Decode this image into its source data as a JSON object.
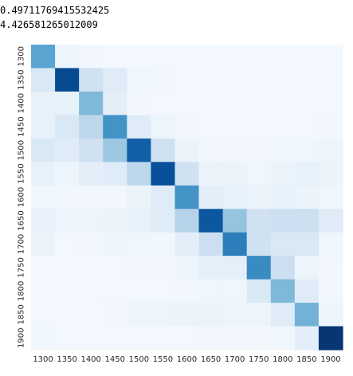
{
  "output": {
    "line1": "0.49711769415532425",
    "line2": "4.426581265012009"
  },
  "chart_data": {
    "type": "heatmap",
    "title": "",
    "xlabel": "",
    "ylabel": "",
    "x_ticks": [
      "1300",
      "1350",
      "1400",
      "1450",
      "1500",
      "1550",
      "1600",
      "1650",
      "1700",
      "1750",
      "1800",
      "1850",
      "1900"
    ],
    "y_ticks": [
      "1300",
      "1350",
      "1400",
      "1450",
      "1500",
      "1550",
      "1600",
      "1650",
      "1700",
      "1750",
      "1800",
      "1850",
      "1900"
    ],
    "colormap": "Blues",
    "color_range": [
      0,
      1
    ],
    "values": [
      [
        0.55,
        0.05,
        0.03,
        0.02,
        0.02,
        0.02,
        0.02,
        0.02,
        0.02,
        0.02,
        0.02,
        0.02,
        0.02
      ],
      [
        0.15,
        0.9,
        0.2,
        0.12,
        0.04,
        0.03,
        0.02,
        0.02,
        0.02,
        0.02,
        0.02,
        0.02,
        0.02
      ],
      [
        0.08,
        0.08,
        0.45,
        0.1,
        0.03,
        0.02,
        0.02,
        0.02,
        0.02,
        0.02,
        0.02,
        0.02,
        0.02
      ],
      [
        0.08,
        0.15,
        0.28,
        0.62,
        0.12,
        0.05,
        0.03,
        0.02,
        0.02,
        0.02,
        0.02,
        0.02,
        0.03
      ],
      [
        0.15,
        0.12,
        0.2,
        0.38,
        0.82,
        0.2,
        0.06,
        0.03,
        0.03,
        0.03,
        0.04,
        0.04,
        0.05
      ],
      [
        0.08,
        0.05,
        0.1,
        0.12,
        0.28,
        0.88,
        0.2,
        0.06,
        0.06,
        0.04,
        0.06,
        0.08,
        0.06
      ],
      [
        0.04,
        0.03,
        0.03,
        0.03,
        0.06,
        0.12,
        0.62,
        0.1,
        0.08,
        0.06,
        0.08,
        0.06,
        0.04
      ],
      [
        0.07,
        0.05,
        0.05,
        0.06,
        0.08,
        0.12,
        0.3,
        0.85,
        0.4,
        0.2,
        0.22,
        0.22,
        0.12
      ],
      [
        0.06,
        0.02,
        0.03,
        0.05,
        0.04,
        0.03,
        0.1,
        0.22,
        0.7,
        0.2,
        0.15,
        0.15,
        0.04
      ],
      [
        0.02,
        0.02,
        0.02,
        0.02,
        0.03,
        0.03,
        0.05,
        0.09,
        0.09,
        0.65,
        0.22,
        0.05,
        0.03
      ],
      [
        0.02,
        0.02,
        0.02,
        0.02,
        0.02,
        0.02,
        0.03,
        0.04,
        0.04,
        0.15,
        0.45,
        0.12,
        0.03
      ],
      [
        0.02,
        0.02,
        0.02,
        0.03,
        0.05,
        0.05,
        0.06,
        0.06,
        0.05,
        0.05,
        0.12,
        0.48,
        0.05
      ],
      [
        0.04,
        0.02,
        0.02,
        0.02,
        0.02,
        0.02,
        0.02,
        0.03,
        0.03,
        0.03,
        0.04,
        0.1,
        0.98
      ]
    ]
  }
}
